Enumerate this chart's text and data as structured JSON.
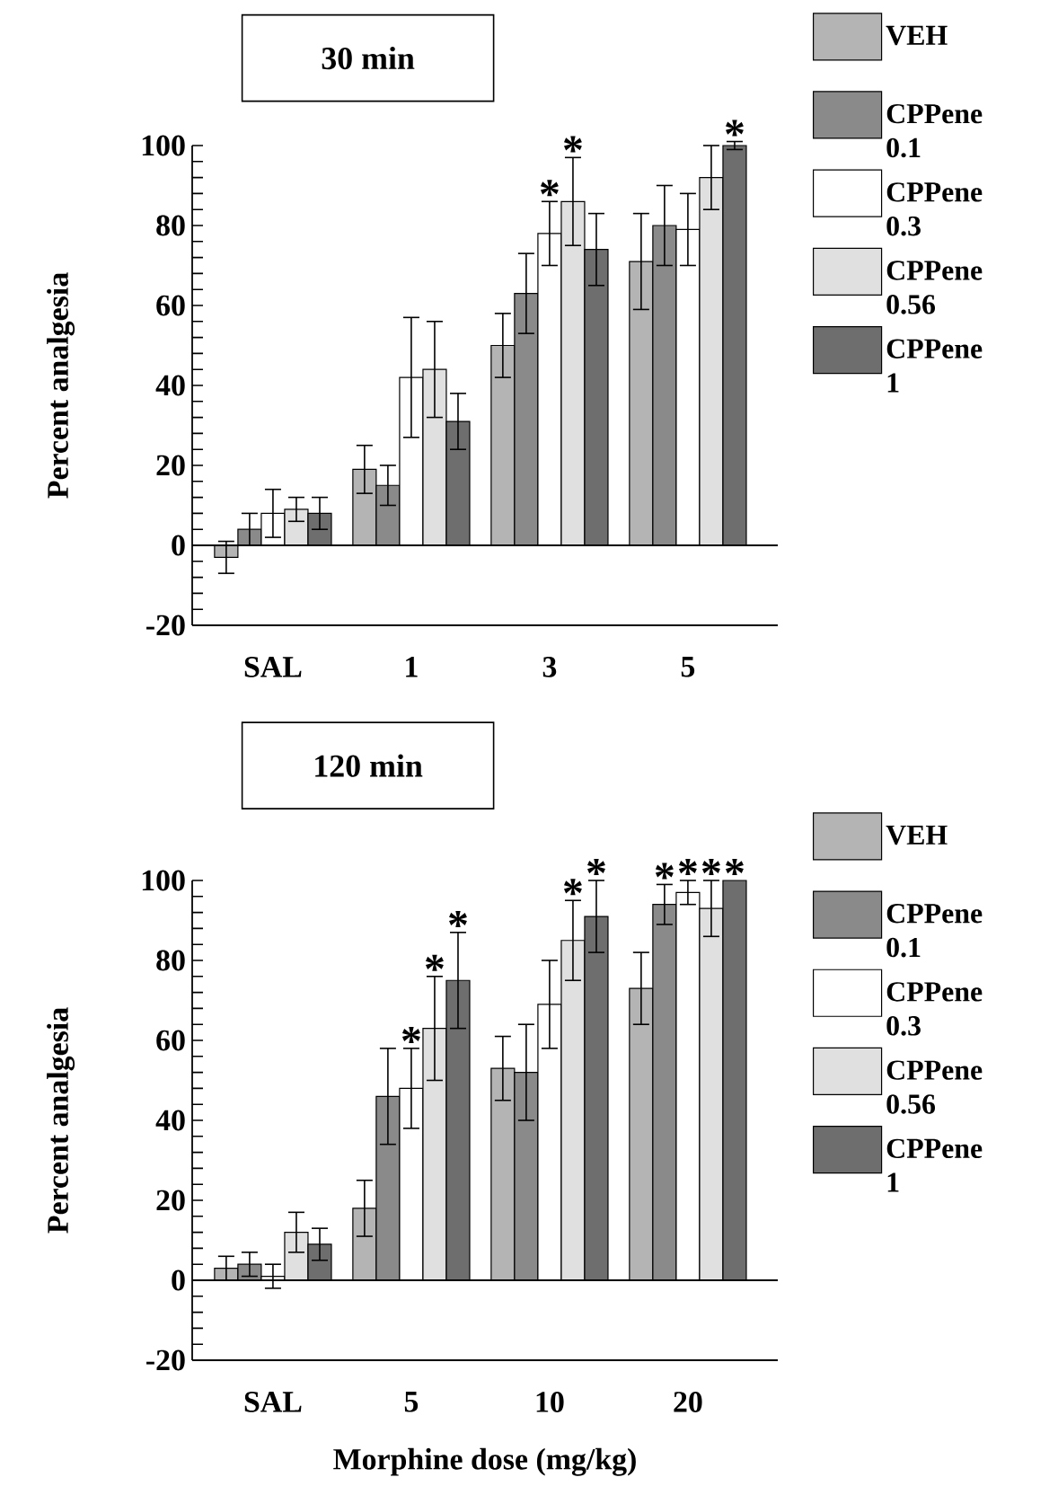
{
  "chart_data": [
    {
      "type": "bar",
      "title": "30 min",
      "ylabel": "Percent analgesia",
      "categories": [
        "SAL",
        "1",
        "3",
        "5"
      ],
      "ylim": [
        -20,
        100
      ],
      "yticks": [
        -20,
        {
          "value": -16,
          "label": null
        },
        {
          "value": -12,
          "label": null
        },
        {
          "value": -8,
          "label": null
        },
        {
          "value": -4,
          "label": null
        },
        0,
        {
          "value": 4,
          "label": null
        },
        {
          "value": 8,
          "label": null
        },
        {
          "value": 12,
          "label": null
        },
        {
          "value": 16,
          "label": null
        },
        20,
        {
          "value": 24,
          "label": null
        },
        {
          "value": 28,
          "label": null
        },
        {
          "value": 32,
          "label": null
        },
        {
          "value": 36,
          "label": null
        },
        40,
        {
          "value": 44,
          "label": null
        },
        {
          "value": 48,
          "label": null
        },
        {
          "value": 52,
          "label": null
        },
        {
          "value": 56,
          "label": null
        },
        60,
        {
          "value": 64,
          "label": null
        },
        {
          "value": 68,
          "label": null
        },
        {
          "value": 72,
          "label": null
        },
        {
          "value": 76,
          "label": null
        },
        80,
        {
          "value": 84,
          "label": null
        },
        {
          "value": 88,
          "label": null
        },
        {
          "value": 92,
          "label": null
        },
        {
          "value": 96,
          "label": null
        },
        100
      ],
      "legend": "right",
      "ref_lines": [
        {
          "axis": "y",
          "value": 0
        }
      ],
      "series": [
        {
          "name": "VEH",
          "color": "#b4b4b4",
          "values": [
            -3,
            19,
            50,
            71
          ],
          "errors": [
            4,
            6,
            8,
            12
          ]
        },
        {
          "name": "CPPene 0.1",
          "color": "#8a8a8a",
          "values": [
            4,
            15,
            63,
            80
          ],
          "errors": [
            4,
            5,
            10,
            10
          ]
        },
        {
          "name": "CPPene 0.3",
          "color": "#ffffff",
          "values": [
            8,
            42,
            78,
            79
          ],
          "errors": [
            6,
            15,
            8,
            9
          ],
          "value_labels": [
            null,
            null,
            "*",
            null
          ]
        },
        {
          "name": "CPPene 0.56",
          "color": "#e0e0e0",
          "values": [
            9,
            44,
            86,
            92
          ],
          "errors": [
            3,
            12,
            11,
            8
          ],
          "value_labels": [
            null,
            null,
            "*",
            null
          ]
        },
        {
          "name": "CPPene 1",
          "color": "#6e6e6e",
          "values": [
            8,
            31,
            74,
            100
          ],
          "errors": [
            4,
            7,
            9,
            1
          ],
          "value_labels": [
            null,
            null,
            null,
            "*"
          ]
        }
      ]
    },
    {
      "type": "bar",
      "title": "120 min",
      "ylabel": "Percent analgesia",
      "xlabel": "Morphine dose (mg/kg)",
      "categories": [
        "SAL",
        "5",
        "10",
        "20"
      ],
      "ylim": [
        -20,
        100
      ],
      "yticks": [
        -20,
        {
          "value": -16,
          "label": null
        },
        {
          "value": -12,
          "label": null
        },
        {
          "value": -8,
          "label": null
        },
        {
          "value": -4,
          "label": null
        },
        0,
        {
          "value": 4,
          "label": null
        },
        {
          "value": 8,
          "label": null
        },
        {
          "value": 12,
          "label": null
        },
        {
          "value": 16,
          "label": null
        },
        20,
        {
          "value": 24,
          "label": null
        },
        {
          "value": 28,
          "label": null
        },
        {
          "value": 32,
          "label": null
        },
        {
          "value": 36,
          "label": null
        },
        40,
        {
          "value": 44,
          "label": null
        },
        {
          "value": 48,
          "label": null
        },
        {
          "value": 52,
          "label": null
        },
        {
          "value": 56,
          "label": null
        },
        60,
        {
          "value": 64,
          "label": null
        },
        {
          "value": 68,
          "label": null
        },
        {
          "value": 72,
          "label": null
        },
        {
          "value": 76,
          "label": null
        },
        80,
        {
          "value": 84,
          "label": null
        },
        {
          "value": 88,
          "label": null
        },
        {
          "value": 92,
          "label": null
        },
        {
          "value": 96,
          "label": null
        },
        100
      ],
      "legend": "right",
      "ref_lines": [
        {
          "axis": "y",
          "value": 0
        }
      ],
      "series": [
        {
          "name": "VEH",
          "color": "#b4b4b4",
          "values": [
            3,
            18,
            53,
            73
          ],
          "errors": [
            3,
            7,
            8,
            9
          ]
        },
        {
          "name": "CPPene 0.1",
          "color": "#8a8a8a",
          "values": [
            4,
            46,
            52,
            94
          ],
          "errors": [
            3,
            12,
            12,
            5
          ],
          "value_labels": [
            null,
            null,
            null,
            "*"
          ]
        },
        {
          "name": "CPPene 0.3",
          "color": "#ffffff",
          "values": [
            1,
            48,
            69,
            97
          ],
          "errors": [
            3,
            10,
            11,
            3
          ],
          "value_labels": [
            null,
            "*",
            null,
            "*"
          ]
        },
        {
          "name": "CPPene 0.56",
          "color": "#e0e0e0",
          "values": [
            12,
            63,
            85,
            93
          ],
          "errors": [
            5,
            13,
            10,
            7
          ],
          "value_labels": [
            null,
            "*",
            "*",
            "*"
          ]
        },
        {
          "name": "CPPene 1",
          "color": "#6e6e6e",
          "values": [
            9,
            75,
            91,
            100
          ],
          "errors": [
            4,
            12,
            9,
            null
          ],
          "value_labels": [
            null,
            "*",
            "*",
            "*"
          ]
        }
      ]
    }
  ]
}
